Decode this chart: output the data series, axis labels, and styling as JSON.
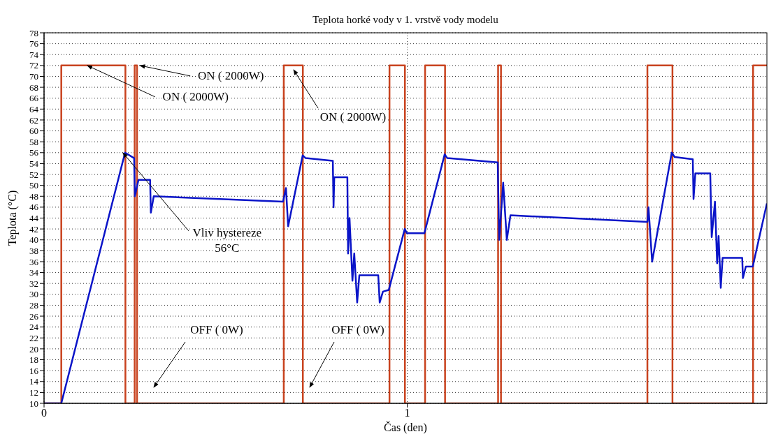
{
  "chart_data": {
    "type": "line",
    "title": "Teplota horké vody v 1. vrstvě vody modelu",
    "xlabel": "Čas (den)",
    "ylabel": "Teplota (°C)",
    "xlim": [
      0,
      1.99
    ],
    "xticks": [
      0,
      1
    ],
    "ylim": [
      10,
      78
    ],
    "yticks": [
      10,
      12,
      14,
      16,
      18,
      20,
      22,
      24,
      26,
      28,
      30,
      32,
      34,
      36,
      38,
      40,
      42,
      44,
      46,
      48,
      50,
      52,
      54,
      56,
      58,
      60,
      62,
      64,
      66,
      68,
      70,
      72,
      74,
      76,
      78
    ],
    "grid": true,
    "line_style": "solid",
    "series": [
      {
        "type": "step",
        "color": "#c8421e",
        "x": [
          0,
          0.0475,
          0.224,
          0.2495,
          0.256,
          0.66,
          0.7125,
          0.951,
          0.9935,
          1.049,
          1.104,
          1.25,
          1.258,
          1.661,
          1.73,
          1.952,
          1.99
        ],
        "values": [
          10,
          72,
          10,
          72,
          10,
          72,
          10,
          72,
          10,
          72,
          10,
          72,
          10,
          72,
          10,
          72,
          72
        ]
      },
      {
        "color": "#0a14c8",
        "x": [
          0,
          0.0475,
          0.223,
          0.248,
          0.25,
          0.26,
          0.292,
          0.294,
          0.302,
          0.658,
          0.666,
          0.672,
          0.712,
          0.72,
          0.795,
          0.797,
          0.799,
          0.835,
          0.837,
          0.841,
          0.849,
          0.854,
          0.862,
          0.868,
          0.92,
          0.924,
          0.933,
          0.949,
          0.993,
          0.999,
          1.047,
          1.103,
          1.11,
          1.249,
          1.253,
          1.264,
          1.274,
          1.284,
          1.661,
          1.664,
          1.674,
          1.728,
          1.736,
          1.786,
          1.788,
          1.793,
          1.834,
          1.838,
          1.847,
          1.853,
          1.857,
          1.863,
          1.868,
          1.922,
          1.924,
          1.932,
          1.951,
          1.99
        ],
        "values": [
          10,
          10,
          56,
          55,
          48,
          51,
          51,
          45,
          48,
          47,
          49.5,
          42.5,
          55.5,
          55,
          54.5,
          46,
          51.5,
          51.5,
          37.5,
          44,
          32.5,
          37.5,
          28.5,
          33.5,
          33.5,
          28.5,
          30.5,
          30.8,
          42,
          41.2,
          41.2,
          55.7,
          55,
          54.2,
          40,
          50.5,
          40,
          44.5,
          43.3,
          46,
          36,
          56,
          55.2,
          54.8,
          47.5,
          52.2,
          52.2,
          40.5,
          47,
          35.7,
          40.7,
          31.2,
          36.7,
          36.7,
          33,
          35.1,
          35.1,
          46.7
        ]
      }
    ],
    "annotations": [
      {
        "text": "ON ( 2000W)",
        "x": 0.119,
        "y": 72
      },
      {
        "text": "ON ( 2000W)",
        "x": 0.264,
        "y": 72
      },
      "ON ( 2000W)",
      {
        "text": "Vliv hystereze\n56°C",
        "x": 0.217,
        "y": 56
      },
      "OFF ( 0W)",
      "OFF ( 0W)"
    ]
  }
}
